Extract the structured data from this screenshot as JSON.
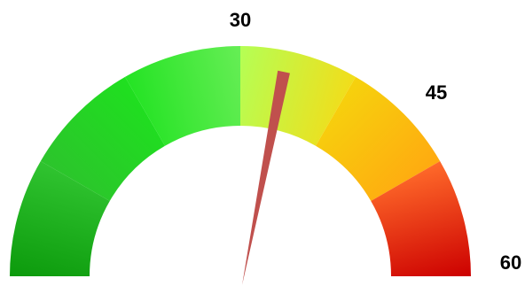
{
  "chart_data": {
    "type": "gauge",
    "title": "",
    "range": [
      0,
      60
    ],
    "value": 34,
    "tick_labels": [
      {
        "value": 30,
        "text": "30"
      },
      {
        "value": 45,
        "text": "45"
      },
      {
        "value": 60,
        "text": "60"
      }
    ],
    "bands": [
      {
        "from": 0,
        "to": 10,
        "colors": [
          "#0c9a0c",
          "#30c430"
        ]
      },
      {
        "from": 10,
        "to": 20,
        "colors": [
          "#2cc42c",
          "#1fe01f"
        ]
      },
      {
        "from": 20,
        "to": 30,
        "colors": [
          "#24e324",
          "#66ee55"
        ]
      },
      {
        "from": 30,
        "to": 40,
        "colors": [
          "#b4ff55",
          "#f2dd1a"
        ]
      },
      {
        "from": 40,
        "to": 50,
        "colors": [
          "#f6d20d",
          "#ffaa10"
        ]
      },
      {
        "from": 50,
        "to": 60,
        "colors": [
          "#ff6a2a",
          "#cc0000"
        ]
      }
    ],
    "needle_color": "#c0504d"
  }
}
